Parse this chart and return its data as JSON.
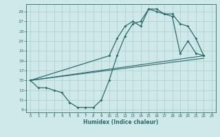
{
  "xlabel": "Humidex (Indice chaleur)",
  "bg_color": "#cfe8e8",
  "grid_color": "#aacece",
  "line_color": "#2a6b6b",
  "xlim": [
    -0.5,
    23.5
  ],
  "ylim": [
    8.5,
    30.5
  ],
  "yticks": [
    9,
    11,
    13,
    15,
    17,
    19,
    21,
    23,
    25,
    27,
    29
  ],
  "xticks": [
    0,
    1,
    2,
    3,
    4,
    5,
    6,
    7,
    8,
    9,
    10,
    11,
    12,
    13,
    14,
    15,
    16,
    17,
    18,
    19,
    20,
    21,
    22,
    23
  ],
  "line1_x": [
    0,
    1,
    2,
    3,
    4,
    5,
    6,
    7,
    8,
    9,
    10,
    11,
    12,
    13,
    14,
    15,
    16,
    17,
    18,
    19,
    20,
    21,
    22
  ],
  "line1_y": [
    15,
    13.5,
    13.5,
    13,
    12.5,
    10.5,
    9.5,
    9.5,
    9.5,
    11,
    15,
    20,
    24,
    26.5,
    27,
    29.5,
    29.5,
    28.5,
    28,
    20.5,
    23,
    20.5,
    20
  ],
  "line2_x": [
    0,
    10,
    11,
    12,
    13,
    14,
    15,
    16,
    17,
    18,
    19,
    20,
    21,
    22
  ],
  "line2_y": [
    15,
    20,
    23.5,
    26,
    27,
    26,
    29.5,
    29,
    28.5,
    28.5,
    26.5,
    26,
    23.5,
    20
  ],
  "line3_x": [
    0,
    22
  ],
  "line3_y": [
    15,
    20
  ],
  "line4_x": [
    0,
    22
  ],
  "line4_y": [
    15,
    19.5
  ]
}
